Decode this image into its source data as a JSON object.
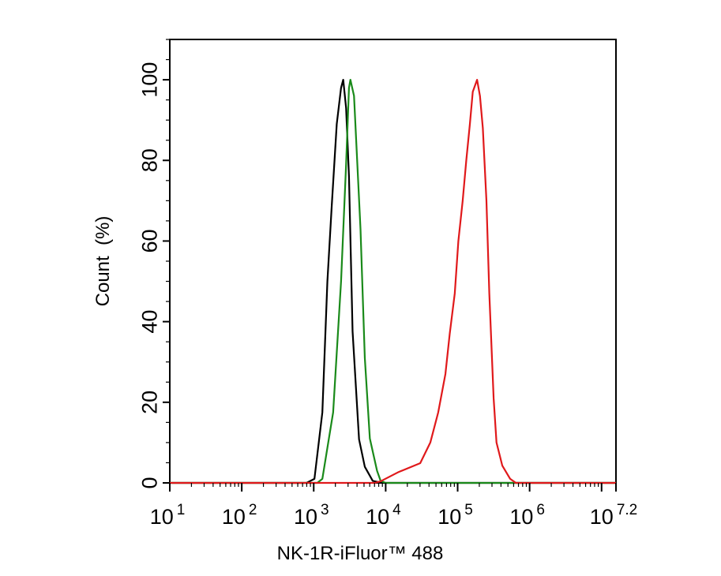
{
  "chart_data": {
    "type": "line",
    "title": "",
    "xlabel": "NK-1R-iFluor™ 488",
    "ylabel": "Count  (%)",
    "x_scale": "log10",
    "xlim_log10": [
      1,
      7.2
    ],
    "ylim": [
      0,
      110
    ],
    "grid": false,
    "legend": "none",
    "x_ticks": [
      {
        "base": "10",
        "exp": "1"
      },
      {
        "base": "10",
        "exp": "2"
      },
      {
        "base": "10",
        "exp": "3"
      },
      {
        "base": "10",
        "exp": "4"
      },
      {
        "base": "10",
        "exp": "5"
      },
      {
        "base": "10",
        "exp": "6"
      },
      {
        "base": "10",
        "exp": "7.2"
      }
    ],
    "y_ticks": [
      "0",
      "20",
      "40",
      "60",
      "80",
      "100"
    ],
    "series": [
      {
        "color": "#000000",
        "x_log10": [
          2.9,
          3.01,
          3.12,
          3.19,
          3.25,
          3.32,
          3.38,
          3.41,
          3.45,
          3.49,
          3.54,
          3.63,
          3.71,
          3.82,
          3.95
        ],
        "y": [
          0,
          1,
          17.5,
          50,
          68.6,
          89,
          98,
          100,
          93,
          76,
          37.6,
          10.8,
          4,
          0.5,
          0
        ]
      },
      {
        "color": "#1a8a1a",
        "x_log10": [
          3.05,
          3.12,
          3.27,
          3.38,
          3.45,
          3.49,
          3.51,
          3.56,
          3.65,
          3.71,
          3.78,
          3.88,
          3.93,
          4.0
        ],
        "y": [
          0,
          1,
          17.5,
          50,
          79,
          98,
          100,
          96,
          63,
          31,
          11,
          3,
          0.5,
          0
        ]
      },
      {
        "color": "#e0191b",
        "x_log10": [
          3.85,
          3.93,
          4.18,
          4.48,
          4.62,
          4.73,
          4.83,
          4.89,
          4.96,
          5.01,
          5.07,
          5.12,
          5.17,
          5.21,
          5.27,
          5.31,
          5.35,
          5.4,
          5.44,
          5.5,
          5.54,
          5.62,
          5.73,
          5.81
        ],
        "y": [
          0,
          0.4,
          2.7,
          4.9,
          10,
          17.5,
          27,
          37,
          47,
          60,
          70,
          80,
          89,
          97,
          100,
          96,
          88,
          70,
          47,
          21,
          10,
          4.3,
          1,
          0
        ]
      }
    ]
  }
}
